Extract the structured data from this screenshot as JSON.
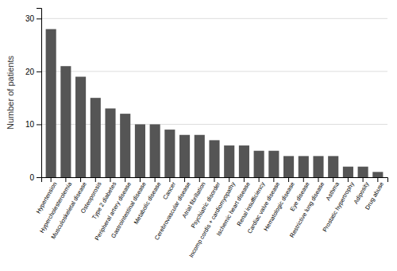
{
  "chart_data": {
    "type": "bar",
    "categories": [
      "Hypertension",
      "Hypercholesterolemia",
      "Musculoskeletal disease",
      "Osteoporosis",
      "Type 2 diabetes",
      "Peripheral artery disease",
      "Gastrointestinal disease",
      "Metabolic disease",
      "Cancer",
      "Cerebrovascular disease",
      "Atrial fibrillation",
      "Psychiatric disorder",
      "Incomp cordis + cardiomyopathy",
      "Ischemic heart disease",
      "Renal insufficiency",
      "Cardiac valve disease",
      "Hematologic disease",
      "Eye disease",
      "Restrictive lung disease",
      "Asthma",
      "Prostatic hypertrophy",
      "Adiposity",
      "Drug abuse"
    ],
    "values": [
      28,
      21,
      19,
      15,
      13,
      12,
      10,
      10,
      9,
      8,
      8,
      7,
      6,
      6,
      5,
      5,
      4,
      4,
      4,
      4,
      2,
      2,
      1
    ],
    "color": "#555555",
    "ylabel": "Number of patients",
    "ylim": [
      0,
      32
    ],
    "yticks": [
      0,
      10,
      20,
      30
    ],
    "grid": true
  }
}
